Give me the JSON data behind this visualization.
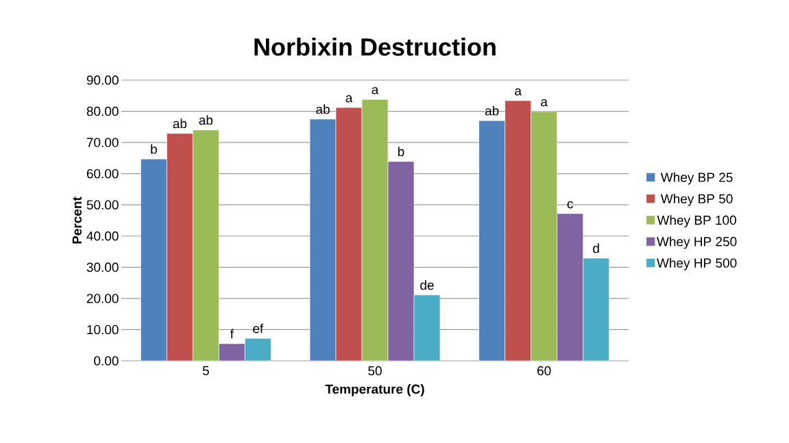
{
  "chart_data": {
    "type": "bar",
    "title": "Norbixin Destruction",
    "xlabel": "Temperature (C)",
    "ylabel": "Percent",
    "categories": [
      "5",
      "50",
      "60"
    ],
    "series": [
      {
        "name": "Whey BP 25",
        "color": "#4f81bd",
        "values": [
          64.7,
          77.5,
          77.0
        ],
        "value_labels": [
          "b",
          "ab",
          "ab"
        ]
      },
      {
        "name": "Whey BP 50",
        "color": "#c0504d",
        "values": [
          72.9,
          81.2,
          83.4
        ],
        "value_labels": [
          "ab",
          "a",
          "a"
        ]
      },
      {
        "name": "Whey BP 100",
        "color": "#9bbb59",
        "values": [
          74.0,
          83.8,
          79.9
        ],
        "value_labels": [
          "ab",
          "a",
          "a"
        ]
      },
      {
        "name": "Whey HP 250",
        "color": "#8064a2",
        "values": [
          5.5,
          63.9,
          47.2
        ],
        "value_labels": [
          "f",
          "b",
          "c"
        ]
      },
      {
        "name": "Whey HP 500",
        "color": "#4bacc6",
        "values": [
          7.2,
          21.1,
          32.9
        ],
        "value_labels": [
          "ef",
          "de",
          "d"
        ]
      }
    ],
    "ylim": [
      0,
      90
    ],
    "yticks": [
      {
        "value": 0,
        "label": "0.00"
      },
      {
        "value": 10,
        "label": "10.00"
      },
      {
        "value": 20,
        "label": "20.00"
      },
      {
        "value": 30,
        "label": "30.00"
      },
      {
        "value": 40,
        "label": "40.00"
      },
      {
        "value": 50,
        "label": "50.00"
      },
      {
        "value": 60,
        "label": "60.00"
      },
      {
        "value": 70,
        "label": "70.00"
      },
      {
        "value": 80,
        "label": "80.00"
      },
      {
        "value": 90,
        "label": "90.00"
      }
    ],
    "grid": "y",
    "legend": "right"
  }
}
